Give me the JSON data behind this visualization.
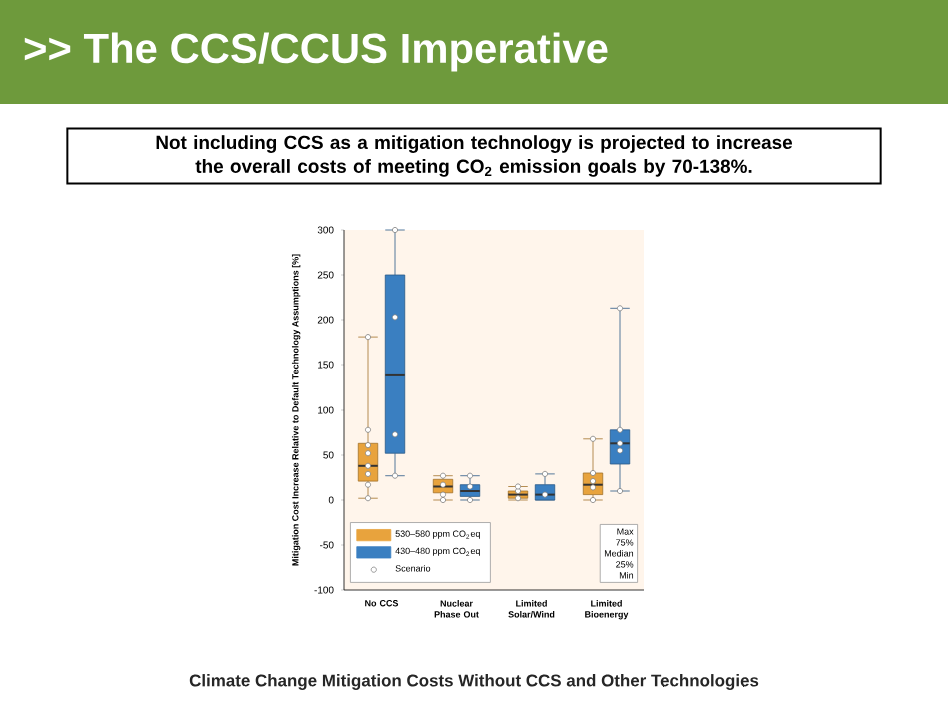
{
  "chart_data": {
    "type": "box",
    "title": ">> The CCS/CCUS Imperative",
    "subtitle": "Not including CCS as a mitigation technology is projected to increase the overall costs of meeting CO$_{2}$ emission goals by 70-138%.",
    "ylabel": "Mitigation Cost Increase Relative to Default Technology Assumptions [%]",
    "categories": [
      "No CCS",
      "Nuclear Phase Out",
      "Limited Solar/Wind",
      "Limited Bioenergy"
    ],
    "ylim": [
      -100,
      300
    ],
    "yticks": [
      -100,
      -50,
      0,
      50,
      100,
      150,
      200,
      250,
      300
    ],
    "legend": "bottom left",
    "annotations": [
      "Climate Change Mitigation Costs Without CCS and Other Technologies",
      "Scenario",
      "Max",
      "75%",
      "Median",
      "25%",
      "Min"
    ],
    "series": [
      {
        "name": "530–580 ppm CO$_{2}$eq",
        "color": "#e8a33d",
        "boxes": [
          {
            "low": 2,
            "q1": 21,
            "median": 38,
            "q3": 63,
            "high": 181,
            "outliers": [
              2,
              17,
              29,
              38,
              52,
              61,
              78,
              181
            ]
          },
          {
            "low": 0,
            "q1": 8,
            "median": 15,
            "q3": 23,
            "high": 27,
            "outliers": [
              0,
              6,
              17,
              27
            ]
          },
          {
            "low": 0,
            "q1": 2,
            "median": 6,
            "q3": 10,
            "high": 15,
            "outliers": [
              2,
              10,
              15
            ]
          },
          {
            "low": 0,
            "q1": 6,
            "median": 17,
            "q3": 30,
            "high": 68,
            "outliers": [
              0,
              14,
              21,
              30,
              68
            ]
          }
        ]
      },
      {
        "name": "430–480 ppm CO$_{2}$eq",
        "color": "#3a7fc1",
        "boxes": [
          {
            "low": 27,
            "q1": 52,
            "median": 139,
            "q3": 250,
            "high": 300,
            "outliers": [
              27,
              73,
              203,
              300
            ]
          },
          {
            "low": 0,
            "q1": 4,
            "median": 10,
            "q3": 17,
            "high": 27,
            "outliers": [
              0,
              15,
              27
            ]
          },
          {
            "low": 0,
            "q1": 0,
            "median": 6,
            "q3": 17,
            "high": 29,
            "outliers": [
              6,
              29
            ]
          },
          {
            "low": 10,
            "q1": 40,
            "median": 63,
            "q3": 78,
            "high": 213,
            "outliers": [
              10,
              55,
              63,
              78,
              213
            ]
          }
        ]
      }
    ]
  }
}
